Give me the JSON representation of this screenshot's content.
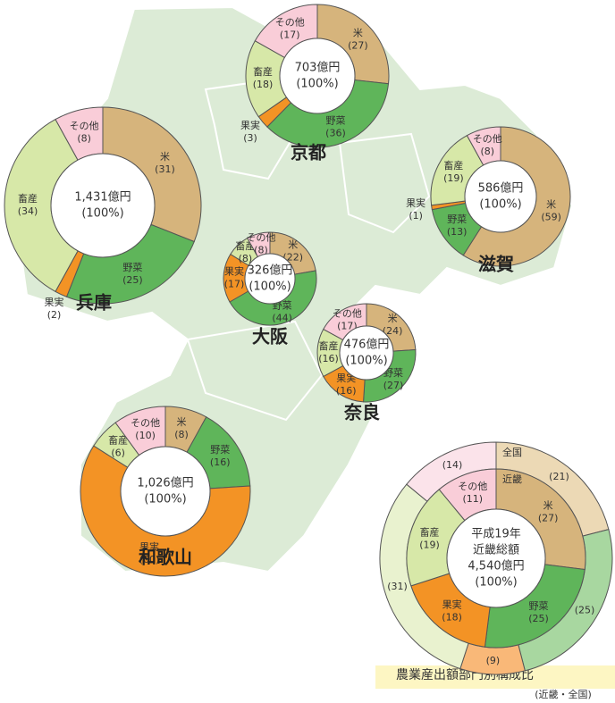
{
  "chart_data": [
    {
      "type": "pie",
      "title": "京都",
      "center": [
        "703億円",
        "(100%)"
      ],
      "categories": [
        "米",
        "野菜",
        "果実",
        "畜産",
        "その他"
      ],
      "values": [
        27,
        36,
        3,
        18,
        17
      ],
      "value_labels": [
        "(27)",
        "(36)",
        "(3)",
        "(18)",
        "(17)"
      ],
      "colors": [
        "#d6b47c",
        "#5fb55a",
        "#f39325",
        "#d7e8a8",
        "#f9cdd8"
      ]
    },
    {
      "type": "pie",
      "title": "滋賀",
      "center": [
        "586億円",
        "(100%)"
      ],
      "categories": [
        "米",
        "野菜",
        "果実",
        "畜産",
        "その他"
      ],
      "values": [
        59,
        13,
        1,
        19,
        8
      ],
      "value_labels": [
        "(59)",
        "(13)",
        "(1)",
        "(19)",
        "(8)"
      ],
      "colors": [
        "#d6b47c",
        "#5fb55a",
        "#f39325",
        "#d7e8a8",
        "#f9cdd8"
      ]
    },
    {
      "type": "pie",
      "title": "兵庫",
      "center": [
        "1,431億円",
        "(100%)"
      ],
      "categories": [
        "米",
        "野菜",
        "果実",
        "畜産",
        "その他"
      ],
      "values": [
        31,
        25,
        2,
        34,
        8
      ],
      "value_labels": [
        "(31)",
        "(25)",
        "(2)",
        "(34)",
        "(8)"
      ],
      "colors": [
        "#d6b47c",
        "#5fb55a",
        "#f39325",
        "#d7e8a8",
        "#f9cdd8"
      ]
    },
    {
      "type": "pie",
      "title": "大阪",
      "center": [
        "326億円",
        "(100%)"
      ],
      "categories": [
        "米",
        "野菜",
        "果実",
        "畜産",
        "その他"
      ],
      "values": [
        22,
        44,
        17,
        8,
        8
      ],
      "value_labels": [
        "(22)",
        "(44)",
        "(17)",
        "(8)",
        "(8)"
      ],
      "colors": [
        "#d6b47c",
        "#5fb55a",
        "#f39325",
        "#d7e8a8",
        "#f9cdd8"
      ]
    },
    {
      "type": "pie",
      "title": "奈良",
      "center": [
        "476億円",
        "(100%)"
      ],
      "categories": [
        "米",
        "野菜",
        "果実",
        "畜産",
        "その他"
      ],
      "values": [
        24,
        27,
        16,
        16,
        17
      ],
      "value_labels": [
        "(24)",
        "(27)",
        "(16)",
        "(16)",
        "(17)"
      ],
      "colors": [
        "#d6b47c",
        "#5fb55a",
        "#f39325",
        "#d7e8a8",
        "#f9cdd8"
      ]
    },
    {
      "type": "pie",
      "title": "和歌山",
      "center": [
        "1,026億円",
        "(100%)"
      ],
      "categories": [
        "米",
        "野菜",
        "果実",
        "畜産",
        "その他"
      ],
      "values": [
        8,
        16,
        60,
        6,
        10
      ],
      "value_labels": [
        "(8)",
        "(16)",
        "(60)",
        "(6)",
        "(10)"
      ],
      "colors": [
        "#d6b47c",
        "#5fb55a",
        "#f39325",
        "#d7e8a8",
        "#f9cdd8"
      ]
    },
    {
      "type": "ring",
      "title": "農業産出額部門別構成比",
      "subtitle": "(近畿・全国)",
      "center": [
        "平成19年",
        "近畿総額",
        "4,540億円",
        "(100%)"
      ],
      "categories": [
        "米",
        "野菜",
        "果実",
        "畜産",
        "その他"
      ],
      "series": [
        {
          "name": "近畿",
          "values": [
            27,
            25,
            18,
            19,
            11
          ],
          "value_labels": [
            "(27)",
            "(25)",
            "(18)",
            "(19)",
            "(11)"
          ],
          "colors": [
            "#d6b47c",
            "#5fb55a",
            "#f39325",
            "#d7e8a8",
            "#f9cdd8"
          ]
        },
        {
          "name": "全国",
          "values": [
            21,
            25,
            9,
            31,
            14
          ],
          "value_labels": [
            "(21)",
            "(25)",
            "(9)",
            "(31)",
            "(14)"
          ],
          "colors": [
            "#ecd9b5",
            "#a8d7a0",
            "#f9b878",
            "#e9f2cf",
            "#fbe3ea"
          ]
        }
      ]
    }
  ]
}
